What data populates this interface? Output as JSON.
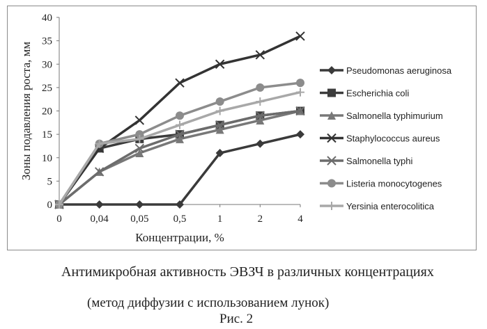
{
  "chart_data": {
    "type": "line",
    "title": "",
    "xlabel": "Концентрации, %",
    "ylabel": "Зоны подавления роста, мм",
    "categories": [
      "0",
      "0,04",
      "0,05",
      "0,5",
      "1",
      "2",
      "4"
    ],
    "ylim": [
      0,
      40
    ],
    "yticks": [
      "0",
      "5",
      "10",
      "15",
      "20",
      "25",
      "30",
      "35",
      "40"
    ],
    "grid": false,
    "legend_position": "right",
    "series": [
      {
        "name": "Pseudomonas aeruginosa",
        "values": [
          0,
          0,
          0,
          0,
          11,
          13,
          15
        ],
        "color": "#3a3a3a",
        "marker": "diamond"
      },
      {
        "name": "Escherichia coli",
        "values": [
          0,
          12,
          14,
          15,
          17,
          19,
          20
        ],
        "color": "#3c3c3c",
        "marker": "square"
      },
      {
        "name": "Salmonella typhimurium",
        "values": [
          0,
          7,
          11,
          14,
          16,
          18,
          20
        ],
        "color": "#787878",
        "marker": "triangle"
      },
      {
        "name": "Staphylococcus aureus",
        "values": [
          0,
          12,
          18,
          26,
          30,
          32,
          36
        ],
        "color": "#333333",
        "marker": "x"
      },
      {
        "name": "Salmonella typhi",
        "values": [
          0,
          7,
          12,
          15,
          17,
          19,
          20
        ],
        "color": "#6c6c6c",
        "marker": "x"
      },
      {
        "name": "Listeria monocytogenes",
        "values": [
          0,
          13,
          15,
          19,
          22,
          25,
          26
        ],
        "color": "#8c8c8c",
        "marker": "circle"
      },
      {
        "name": "Yersinia enterocolitica",
        "values": [
          0,
          13,
          14,
          17,
          20,
          22,
          24
        ],
        "color": "#a8a8a8",
        "marker": "plus"
      }
    ]
  },
  "caption": {
    "line1": "Антимикробная активность ЭВЗЧ в различных концентрациях",
    "line2": "(метод диффузии с использованием лунок)",
    "figure_label": "Рис. 2"
  }
}
